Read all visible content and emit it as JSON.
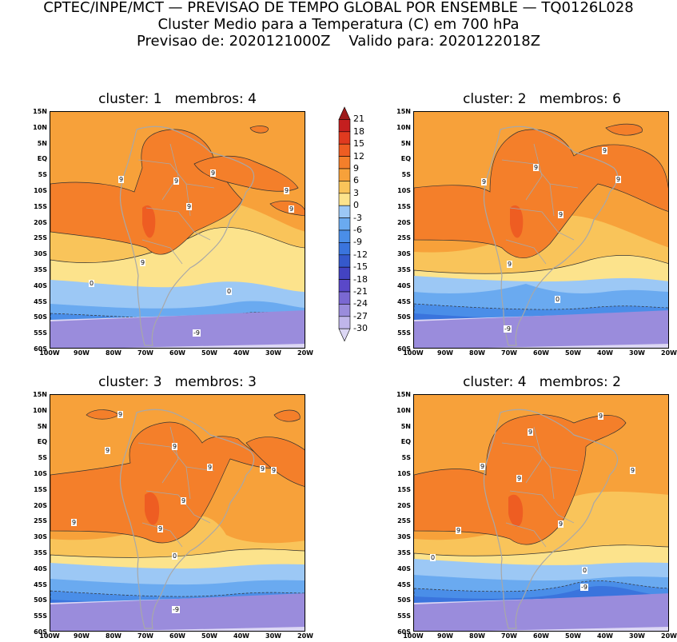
{
  "header": {
    "line1": "CPTEC/INPE/MCT — PREVISAO DE TEMPO GLOBAL POR ENSEMBLE — TQ0126L028",
    "line2": "Cluster Medio para a Temperatura (C) em 700 hPa",
    "line3": "Previsao de: 2020121000Z    Valido para: 2020122018Z"
  },
  "lat_labels": [
    "15N",
    "10N",
    "5N",
    "EQ",
    "5S",
    "10S",
    "15S",
    "20S",
    "25S",
    "30S",
    "35S",
    "40S",
    "45S",
    "50S",
    "55S",
    "60S"
  ],
  "lon_labels": [
    "100W",
    "90W",
    "80W",
    "70W",
    "60W",
    "50W",
    "40W",
    "30W",
    "20W"
  ],
  "colorbar": {
    "labels": [
      "21",
      "18",
      "15",
      "12",
      "9",
      "6",
      "3",
      "0",
      "-3",
      "-6",
      "-9",
      "-12",
      "-15",
      "-18",
      "-21",
      "-24",
      "-27",
      "-30"
    ],
    "colors": [
      "#9e1b1b",
      "#c41f1f",
      "#e03a1f",
      "#ee5d22",
      "#f47f2a",
      "#f7a13a",
      "#f9c45a",
      "#fce38c",
      "#9cc8f5",
      "#6aaaf0",
      "#4a8ee8",
      "#3a74dd",
      "#3559cc",
      "#4343c2",
      "#5a48c8",
      "#7a68d2",
      "#9a8cdc",
      "#c0b6ea",
      "#dcd7f4"
    ]
  },
  "panels": [
    {
      "title": "cluster: 1   membros: 4",
      "labels": [
        {
          "t": "9"
        },
        {
          "t": "9"
        },
        {
          "t": "9"
        },
        {
          "t": "9"
        },
        {
          "t": "9"
        },
        {
          "t": "9"
        },
        {
          "t": "9"
        },
        {
          "t": "0"
        },
        {
          "t": "0"
        },
        {
          "t": "-9"
        }
      ]
    },
    {
      "title": "cluster: 2   membros: 6",
      "labels": [
        {
          "t": "9"
        },
        {
          "t": "9"
        },
        {
          "t": "9"
        },
        {
          "t": "9"
        },
        {
          "t": "9"
        },
        {
          "t": "9"
        },
        {
          "t": "0"
        },
        {
          "t": "-9"
        }
      ]
    },
    {
      "title": "cluster: 3   membros: 3",
      "labels": [
        {
          "t": "9"
        },
        {
          "t": "9"
        },
        {
          "t": "9"
        },
        {
          "t": "9"
        },
        {
          "t": "9"
        },
        {
          "t": "9"
        },
        {
          "t": "9"
        },
        {
          "t": "9"
        },
        {
          "t": "9"
        },
        {
          "t": "0"
        },
        {
          "t": "-9"
        }
      ]
    },
    {
      "title": "cluster: 4   membros: 2",
      "labels": [
        {
          "t": "9"
        },
        {
          "t": "9"
        },
        {
          "t": "9"
        },
        {
          "t": "9"
        },
        {
          "t": "9"
        },
        {
          "t": "9"
        },
        {
          "t": "9"
        },
        {
          "t": "0"
        },
        {
          "t": "0"
        },
        {
          "t": "-9"
        }
      ]
    }
  ]
}
